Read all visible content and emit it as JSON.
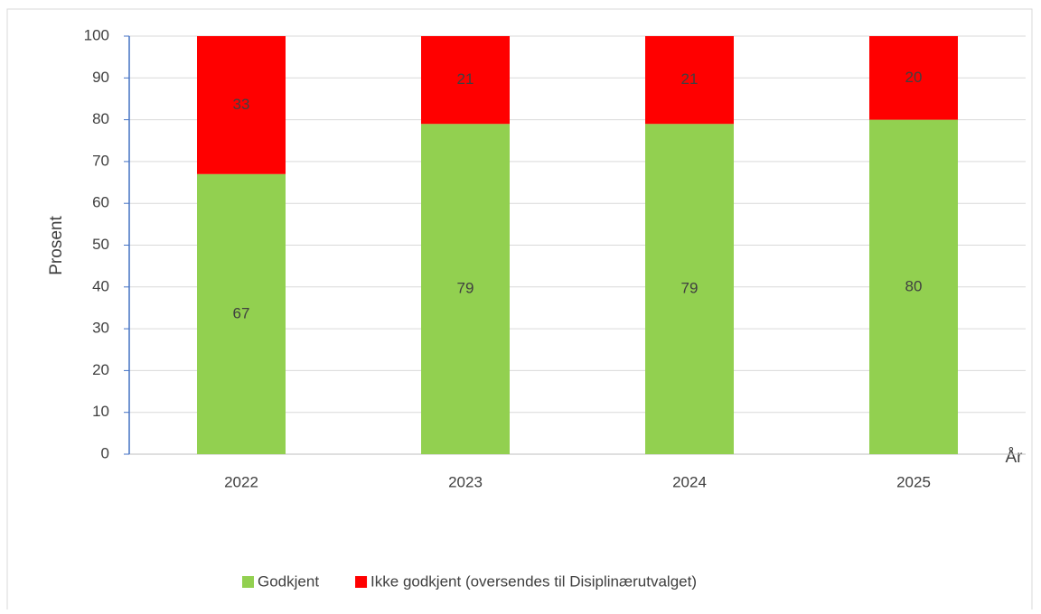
{
  "chart_data": {
    "type": "bar",
    "stacked": true,
    "categories": [
      "2022",
      "2023",
      "2024",
      "2025"
    ],
    "series": [
      {
        "name": "Godkjent",
        "color": "#92d050",
        "values": [
          67,
          79,
          79,
          80
        ]
      },
      {
        "name": "Ikke godkjent (oversendes til Disiplinærutvalget)",
        "color": "#ff0000",
        "values": [
          33,
          21,
          21,
          20
        ]
      }
    ],
    "ylabel": "Prosent",
    "xlabel": "År",
    "ylim": [
      0,
      100
    ],
    "yticks": [
      0,
      10,
      20,
      30,
      40,
      50,
      60,
      70,
      80,
      90,
      100
    ],
    "grid": true,
    "legend": "bottom"
  }
}
